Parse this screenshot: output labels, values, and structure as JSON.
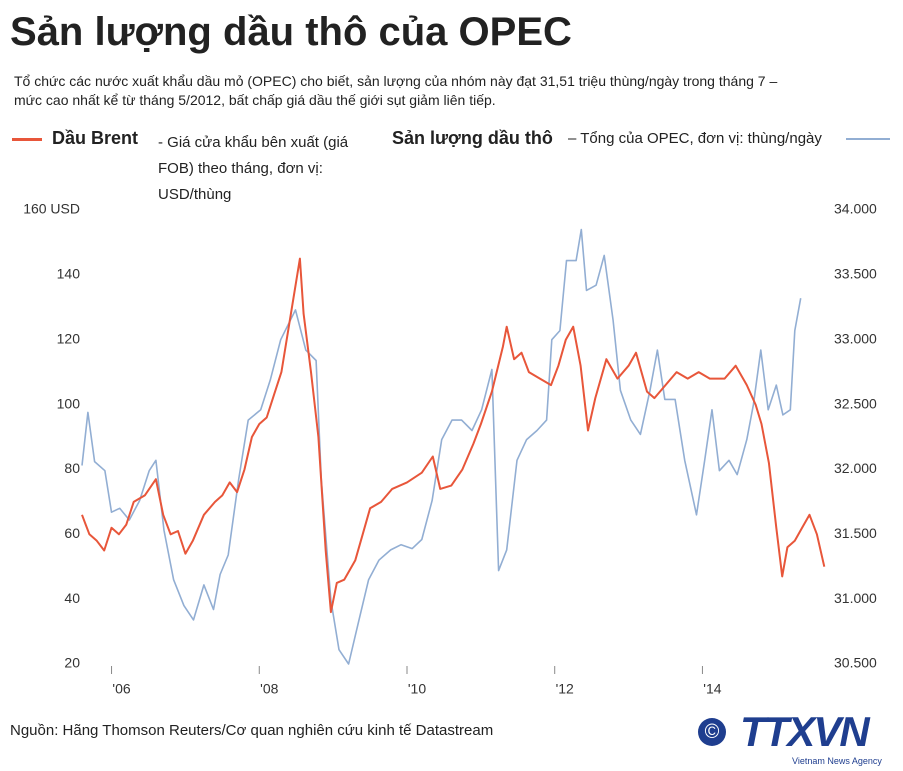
{
  "chart_data": {
    "type": "line",
    "title": "Sản lượng dầu thô của OPEC",
    "subtitle": "Tổ chức các nước xuất khẩu dầu mỏ (OPEC) cho biết, sản lượng của nhóm này đạt 31,51 triệu thùng/ngày trong tháng 7 – mức cao nhất kể từ tháng 5/2012, bất chấp giá dầu thế giới sụt giảm liên tiếp.",
    "legend_notes": [
      "- Giá cửa khẩu bên xuất (giá FOB) theo tháng, đơn vị: USD/thùng",
      "– Tổng của OPEC, đơn vị: thùng/ngày"
    ],
    "source": "Nguồn: Hãng Thomson Reuters/Cơ quan nghiên cứu kinh tế Datastream",
    "logo": {
      "mark": "©",
      "name": "TTXVN",
      "sub": "Vietnam News Agency"
    },
    "xlim": [
      2005.6,
      2015.7
    ],
    "xticks": [
      {
        "value": 2006,
        "label": "'06"
      },
      {
        "value": 2008,
        "label": "'08"
      },
      {
        "value": 2010,
        "label": "'10"
      },
      {
        "value": 2012,
        "label": "'12"
      },
      {
        "value": 2014,
        "label": "'14"
      }
    ],
    "ylim": [
      20,
      160
    ],
    "yticks": [
      20,
      40,
      60,
      80,
      100,
      120,
      140,
      {
        "value": 160,
        "label": "160 USD"
      }
    ],
    "y2lim": [
      30500,
      34000
    ],
    "y2ticks": [
      {
        "value": 30500,
        "label": "30.500"
      },
      {
        "value": 31000,
        "label": "31.000"
      },
      {
        "value": 31500,
        "label": "31.500"
      },
      {
        "value": 32000,
        "label": "32.000"
      },
      {
        "value": 32500,
        "label": "32.500"
      },
      {
        "value": 33000,
        "label": "33.000"
      },
      {
        "value": 33500,
        "label": "33.500"
      },
      {
        "value": 34000,
        "label": "34.000"
      }
    ],
    "series": [
      {
        "name": "Dầu Brent",
        "color": "#e8563a",
        "x": [
          2005.6,
          2005.65,
          2005.7,
          2005.8,
          2005.9,
          2006.0,
          2006.1,
          2006.2,
          2006.3,
          2006.45,
          2006.6,
          2006.7,
          2006.8,
          2006.9,
          2007.0,
          2007.1,
          2007.25,
          2007.4,
          2007.5,
          2007.6,
          2007.7,
          2007.8,
          2007.9,
          2008.0,
          2008.1,
          2008.2,
          2008.3,
          2008.4,
          2008.5,
          2008.55,
          2008.6,
          2008.7,
          2008.8,
          2008.9,
          2008.97,
          2009.05,
          2009.15,
          2009.3,
          2009.4,
          2009.5,
          2009.65,
          2009.8,
          2010.0,
          2010.2,
          2010.35,
          2010.45,
          2010.6,
          2010.75,
          2010.9,
          2011.0,
          2011.15,
          2011.3,
          2011.35,
          2011.45,
          2011.55,
          2011.65,
          2011.8,
          2011.95,
          2012.05,
          2012.15,
          2012.25,
          2012.35,
          2012.45,
          2012.55,
          2012.7,
          2012.85,
          2013.0,
          2013.1,
          2013.25,
          2013.35,
          2013.5,
          2013.65,
          2013.8,
          2013.95,
          2014.1,
          2014.3,
          2014.45,
          2014.6,
          2014.72,
          2014.8,
          2014.9,
          2015.0,
          2015.08,
          2015.15,
          2015.25,
          2015.35,
          2015.45,
          2015.55,
          2015.65
        ],
        "values": [
          66,
          63,
          60,
          58,
          55,
          62,
          60,
          63,
          70,
          72,
          77,
          66,
          60,
          61,
          54,
          58,
          66,
          70,
          72,
          76,
          73,
          80,
          90,
          94,
          96,
          103,
          110,
          124,
          138,
          145,
          128,
          110,
          90,
          55,
          36,
          45,
          46,
          52,
          60,
          68,
          70,
          74,
          76,
          79,
          84,
          74,
          75,
          80,
          88,
          94,
          104,
          118,
          124,
          114,
          116,
          110,
          108,
          106,
          112,
          120,
          124,
          112,
          92,
          102,
          114,
          108,
          112,
          116,
          104,
          102,
          106,
          110,
          108,
          110,
          108,
          108,
          112,
          106,
          100,
          94,
          82,
          62,
          47,
          56,
          58,
          62,
          66,
          60,
          50
        ]
      },
      {
        "name": "Sản lượng dầu thô",
        "color": "#92aed3",
        "axis": "y2",
        "x": [
          2005.6,
          2005.68,
          2005.77,
          2005.91,
          2006.0,
          2006.11,
          2006.24,
          2006.38,
          2006.51,
          2006.6,
          2006.71,
          2006.84,
          2006.98,
          2007.11,
          2007.25,
          2007.38,
          2007.47,
          2007.58,
          2007.72,
          2007.85,
          2008.02,
          2008.15,
          2008.29,
          2008.49,
          2008.63,
          2008.77,
          2008.84,
          2008.97,
          2009.08,
          2009.21,
          2009.35,
          2009.48,
          2009.62,
          2009.78,
          2009.92,
          2010.07,
          2010.2,
          2010.34,
          2010.47,
          2010.61,
          2010.74,
          2010.88,
          2011.01,
          2011.15,
          2011.24,
          2011.35,
          2011.49,
          2011.62,
          2011.76,
          2011.89,
          2011.96,
          2012.07,
          2012.16,
          2012.29,
          2012.36,
          2012.43,
          2012.56,
          2012.67,
          2012.79,
          2012.89,
          2013.03,
          2013.16,
          2013.29,
          2013.39,
          2013.49,
          2013.63,
          2013.76,
          2013.92,
          2014.03,
          2014.13,
          2014.23,
          2014.36,
          2014.47,
          2014.6,
          2014.69,
          2014.79,
          2014.89,
          2015.0,
          2015.09,
          2015.19,
          2015.25,
          2015.33
        ],
        "values": [
          32030,
          32440,
          32060,
          31990,
          31670,
          31700,
          31610,
          31760,
          31990,
          32070,
          31530,
          31150,
          30950,
          30840,
          31110,
          30920,
          31190,
          31340,
          31920,
          32380,
          32460,
          32690,
          33000,
          33230,
          32920,
          32840,
          31920,
          30990,
          30610,
          30500,
          30840,
          31150,
          31300,
          31380,
          31420,
          31390,
          31460,
          31760,
          32230,
          32380,
          32380,
          32300,
          32460,
          32770,
          31220,
          31380,
          32070,
          32230,
          32300,
          32380,
          33000,
          33070,
          33610,
          33610,
          33850,
          33380,
          33420,
          33650,
          33150,
          32610,
          32380,
          32270,
          32610,
          32920,
          32540,
          32540,
          32070,
          31650,
          32070,
          32460,
          31990,
          32070,
          31960,
          32230,
          32500,
          32920,
          32460,
          32650,
          32420,
          32460,
          33070,
          33320
        ]
      }
    ]
  }
}
